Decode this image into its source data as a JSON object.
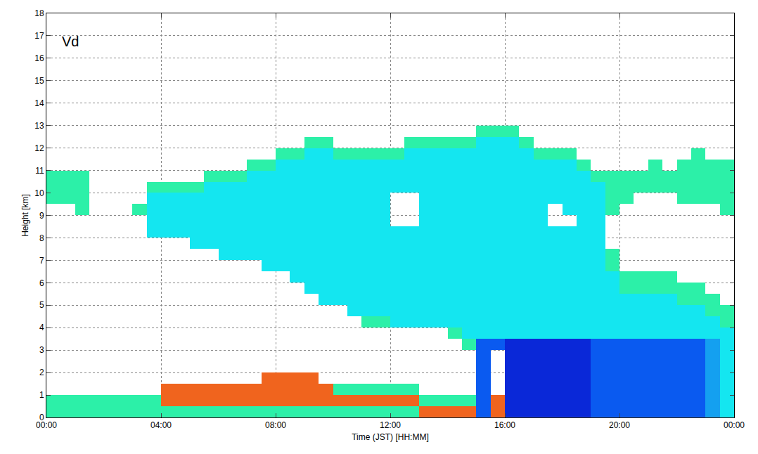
{
  "chart_data": {
    "type": "heatmap",
    "annotations": [
      "Vd"
    ],
    "x_label": "Time (JST) [HH:MM]",
    "y_label": "Height [km]",
    "xlim": [
      0,
      24
    ],
    "xticks": [
      {
        "value": 0,
        "label": "00:00"
      },
      {
        "value": 4,
        "label": "04:00"
      },
      {
        "value": 8,
        "label": "08:00"
      },
      {
        "value": 12,
        "label": "12:00"
      },
      {
        "value": 16,
        "label": "16:00"
      },
      {
        "value": 20,
        "label": "20:00"
      },
      {
        "value": 24,
        "label": "00:00"
      }
    ],
    "ylim": [
      0,
      18
    ],
    "yticks": [
      0,
      1,
      2,
      3,
      4,
      5,
      6,
      7,
      8,
      9,
      10,
      11,
      12,
      13,
      14,
      15,
      16,
      17,
      18
    ],
    "grid": true,
    "zlim": [
      -6,
      1
    ],
    "x": [
      0.25,
      0.75,
      1.25,
      1.75,
      2.25,
      2.75,
      3.25,
      3.75,
      4.25,
      4.75,
      5.25,
      5.75,
      6.25,
      6.75,
      7.25,
      7.75,
      8.25,
      8.75,
      9.25,
      9.75,
      10.25,
      10.75,
      11.25,
      11.75,
      12.25,
      12.75,
      13.25,
      13.75,
      14.25,
      14.75,
      15.25,
      15.75,
      16.25,
      16.75,
      17.25,
      17.75,
      18.25,
      18.75,
      19.25,
      19.75,
      20.25,
      20.75,
      21.25,
      21.75,
      22.25,
      22.75,
      23.25,
      23.75
    ],
    "y": [
      0.25,
      0.75,
      1.25,
      1.75,
      2.25,
      2.75,
      3.25,
      3.75,
      4.25,
      4.75,
      5.25,
      5.75,
      6.25,
      6.75,
      7.25,
      7.75,
      8.25,
      8.75,
      9.25,
      9.75,
      10.25,
      10.75,
      11.25,
      11.75,
      12.25,
      12.75
    ],
    "z": [
      [
        0,
        0,
        0,
        0,
        0,
        0,
        0,
        0,
        0,
        0,
        0,
        0,
        0,
        0,
        0,
        0,
        0,
        0,
        0,
        0,
        0,
        0,
        0,
        0,
        0,
        0,
        1,
        1,
        1,
        1,
        -4,
        1,
        -6,
        -6,
        -6,
        -6,
        -6,
        -6,
        -4,
        -4,
        -4,
        -4,
        -4,
        -4,
        -4,
        -4,
        -2,
        -1
      ],
      [
        0,
        0,
        0,
        0,
        0,
        0,
        0,
        0,
        1,
        1,
        1,
        1,
        1,
        1,
        1,
        1,
        1,
        1,
        1,
        1,
        1,
        1,
        1,
        1,
        1,
        1,
        0,
        0,
        0,
        0,
        -4,
        1,
        -6,
        -6,
        -6,
        -6,
        -6,
        -6,
        -4,
        -4,
        -4,
        -4,
        -4,
        -4,
        -4,
        -4,
        -2,
        -1
      ],
      [
        null,
        null,
        null,
        null,
        null,
        null,
        null,
        null,
        1,
        1,
        1,
        1,
        1,
        1,
        1,
        1,
        1,
        1,
        1,
        1,
        0,
        0,
        0,
        0,
        0,
        0,
        null,
        null,
        null,
        null,
        -4,
        null,
        -6,
        -6,
        -6,
        -6,
        -6,
        -6,
        -4,
        -4,
        -4,
        -4,
        -4,
        -4,
        -4,
        -4,
        -2,
        -1
      ],
      [
        null,
        null,
        null,
        null,
        null,
        null,
        null,
        null,
        null,
        null,
        null,
        null,
        null,
        null,
        null,
        1,
        1,
        1,
        1,
        null,
        null,
        null,
        null,
        null,
        null,
        null,
        null,
        null,
        null,
        null,
        -4,
        null,
        -6,
        -6,
        -6,
        -6,
        -6,
        -6,
        -4,
        -4,
        -4,
        -4,
        -4,
        -4,
        -4,
        -4,
        -2,
        -1
      ],
      [
        null,
        null,
        null,
        null,
        null,
        null,
        null,
        null,
        null,
        null,
        null,
        null,
        null,
        null,
        null,
        null,
        null,
        null,
        null,
        null,
        null,
        null,
        null,
        null,
        null,
        null,
        null,
        null,
        null,
        null,
        -4,
        null,
        -6,
        -6,
        -6,
        -6,
        -6,
        -6,
        -4,
        -4,
        -4,
        -4,
        -4,
        -4,
        -4,
        -4,
        -2,
        -1
      ],
      [
        null,
        null,
        null,
        null,
        null,
        null,
        null,
        null,
        null,
        null,
        null,
        null,
        null,
        null,
        null,
        null,
        null,
        null,
        null,
        null,
        null,
        null,
        null,
        null,
        null,
        null,
        null,
        null,
        null,
        null,
        -4,
        null,
        -6,
        -6,
        -6,
        -6,
        -6,
        -6,
        -4,
        -4,
        -4,
        -4,
        -4,
        -4,
        -4,
        -4,
        -2,
        -1
      ],
      [
        null,
        null,
        null,
        null,
        null,
        null,
        null,
        null,
        null,
        null,
        null,
        null,
        null,
        null,
        null,
        null,
        null,
        null,
        null,
        null,
        null,
        null,
        null,
        null,
        null,
        null,
        null,
        null,
        null,
        0,
        -4,
        -4,
        -6,
        -6,
        -6,
        -6,
        -6,
        -6,
        -4,
        -4,
        -4,
        -4,
        -4,
        -4,
        -4,
        -4,
        -2,
        -1
      ],
      [
        null,
        null,
        null,
        null,
        null,
        null,
        null,
        null,
        null,
        null,
        null,
        null,
        null,
        null,
        null,
        null,
        null,
        null,
        null,
        null,
        null,
        null,
        null,
        null,
        null,
        null,
        null,
        null,
        0,
        -1,
        -1,
        -1,
        -1,
        -1,
        -1,
        -1,
        -1,
        -1,
        -1,
        -1,
        -1,
        -1,
        -1,
        -1,
        -1,
        -1,
        -1,
        -1
      ],
      [
        null,
        null,
        null,
        null,
        null,
        null,
        null,
        null,
        null,
        null,
        null,
        null,
        null,
        null,
        null,
        null,
        null,
        null,
        null,
        null,
        null,
        null,
        0,
        0,
        -1,
        -1,
        -1,
        -1,
        -1,
        -1,
        -1,
        -1,
        -1,
        -1,
        -1,
        -1,
        -1,
        -1,
        -1,
        -1,
        -1,
        -1,
        -1,
        -1,
        -1,
        -1,
        -1,
        0
      ],
      [
        null,
        null,
        null,
        null,
        null,
        null,
        null,
        null,
        null,
        null,
        null,
        null,
        null,
        null,
        null,
        null,
        null,
        null,
        null,
        null,
        null,
        -1,
        -1,
        -1,
        -1,
        -1,
        -1,
        -1,
        -1,
        -1,
        -1,
        -1,
        -1,
        -1,
        -1,
        -1,
        -1,
        -1,
        -1,
        -1,
        -1,
        -1,
        -1,
        -1,
        -1,
        -1,
        0,
        0
      ],
      [
        null,
        null,
        null,
        null,
        null,
        null,
        null,
        null,
        null,
        null,
        null,
        null,
        null,
        null,
        null,
        null,
        null,
        null,
        null,
        -1,
        -1,
        -1,
        -1,
        -1,
        -1,
        -1,
        -1,
        -1,
        -1,
        -1,
        -1,
        -1,
        -1,
        -1,
        -1,
        -1,
        -1,
        -1,
        -1,
        -1,
        -1,
        -1,
        -1,
        -1,
        0,
        0,
        0,
        null
      ],
      [
        null,
        null,
        null,
        null,
        null,
        null,
        null,
        null,
        null,
        null,
        null,
        null,
        null,
        null,
        null,
        null,
        null,
        null,
        -1,
        -1,
        -1,
        -1,
        -1,
        -1,
        -1,
        -1,
        -1,
        -1,
        -1,
        -1,
        -1,
        -1,
        -1,
        -1,
        -1,
        -1,
        -1,
        -1,
        -1,
        -1,
        0,
        0,
        0,
        0,
        0,
        0,
        null,
        null
      ],
      [
        null,
        null,
        null,
        null,
        null,
        null,
        null,
        null,
        null,
        null,
        null,
        null,
        null,
        null,
        null,
        null,
        null,
        -1,
        -1,
        -1,
        -1,
        -1,
        -1,
        -1,
        -1,
        -1,
        -1,
        -1,
        -1,
        -1,
        -1,
        -1,
        -1,
        -1,
        -1,
        -1,
        -1,
        -1,
        -1,
        -1,
        0,
        0,
        0,
        0,
        null,
        null,
        null,
        null
      ],
      [
        null,
        null,
        null,
        null,
        null,
        null,
        null,
        null,
        null,
        null,
        null,
        null,
        null,
        null,
        null,
        -1,
        -1,
        -1,
        -1,
        -1,
        -1,
        -1,
        -1,
        -1,
        -1,
        -1,
        -1,
        -1,
        -1,
        -1,
        -1,
        -1,
        -1,
        -1,
        -1,
        -1,
        -1,
        -1,
        -1,
        0,
        null,
        null,
        null,
        null,
        null,
        null,
        null,
        null
      ],
      [
        null,
        null,
        null,
        null,
        null,
        null,
        null,
        null,
        null,
        null,
        null,
        null,
        -1,
        -1,
        -1,
        -1,
        -1,
        -1,
        -1,
        -1,
        -1,
        -1,
        -1,
        -1,
        -1,
        -1,
        -1,
        -1,
        -1,
        -1,
        -1,
        -1,
        -1,
        -1,
        -1,
        -1,
        -1,
        -1,
        -1,
        0,
        null,
        null,
        null,
        null,
        null,
        null,
        null,
        null
      ],
      [
        null,
        null,
        null,
        null,
        null,
        null,
        null,
        null,
        null,
        null,
        -1,
        -1,
        -1,
        -1,
        -1,
        -1,
        -1,
        -1,
        -1,
        -1,
        -1,
        -1,
        -1,
        -1,
        -1,
        -1,
        -1,
        -1,
        -1,
        -1,
        -1,
        -1,
        -1,
        -1,
        -1,
        -1,
        -1,
        -1,
        -1,
        null,
        null,
        null,
        null,
        null,
        null,
        null,
        null,
        null
      ],
      [
        null,
        null,
        null,
        null,
        null,
        null,
        null,
        -1,
        -1,
        -1,
        -1,
        -1,
        -1,
        -1,
        -1,
        -1,
        -1,
        -1,
        -1,
        -1,
        -1,
        -1,
        -1,
        -1,
        -1,
        -1,
        -1,
        -1,
        -1,
        -1,
        -1,
        -1,
        -1,
        -1,
        -1,
        -1,
        -1,
        -1,
        -1,
        null,
        null,
        null,
        null,
        null,
        null,
        null,
        null,
        null
      ],
      [
        null,
        null,
        null,
        null,
        null,
        null,
        null,
        -1,
        -1,
        -1,
        -1,
        -1,
        -1,
        -1,
        -1,
        -1,
        -1,
        -1,
        -1,
        -1,
        -1,
        -1,
        -1,
        -1,
        null,
        null,
        -1,
        -1,
        -1,
        -1,
        -1,
        -1,
        -1,
        -1,
        -1,
        null,
        null,
        -1,
        -1,
        null,
        null,
        null,
        null,
        null,
        null,
        null,
        null,
        null
      ],
      [
        null,
        null,
        0,
        null,
        null,
        null,
        0,
        -1,
        -1,
        -1,
        -1,
        -1,
        -1,
        -1,
        -1,
        -1,
        -1,
        -1,
        -1,
        -1,
        -1,
        -1,
        -1,
        -1,
        null,
        null,
        -1,
        -1,
        -1,
        -1,
        -1,
        -1,
        -1,
        -1,
        -1,
        null,
        -1,
        -1,
        -1,
        0,
        null,
        null,
        null,
        null,
        null,
        null,
        null,
        0
      ],
      [
        0,
        0,
        0,
        null,
        null,
        null,
        null,
        -1,
        -1,
        -1,
        -1,
        -1,
        -1,
        -1,
        -1,
        -1,
        -1,
        -1,
        -1,
        -1,
        -1,
        -1,
        -1,
        -1,
        null,
        null,
        -1,
        -1,
        -1,
        -1,
        -1,
        -1,
        -1,
        -1,
        -1,
        -1,
        -1,
        -1,
        -1,
        0,
        0,
        null,
        null,
        null,
        0,
        0,
        0,
        0
      ],
      [
        0,
        0,
        0,
        null,
        null,
        null,
        null,
        0,
        0,
        0,
        0,
        -1,
        -1,
        -1,
        -1,
        -1,
        -1,
        -1,
        -1,
        -1,
        -1,
        -1,
        -1,
        -1,
        -1,
        -1,
        -1,
        -1,
        -1,
        -1,
        -1,
        -1,
        -1,
        -1,
        -1,
        -1,
        -1,
        -1,
        -1,
        0,
        0,
        0,
        0,
        0,
        0,
        0,
        0,
        0
      ],
      [
        0,
        0,
        0,
        null,
        null,
        null,
        null,
        null,
        null,
        null,
        null,
        0,
        0,
        0,
        -1,
        -1,
        -1,
        -1,
        -1,
        -1,
        -1,
        -1,
        -1,
        -1,
        -1,
        -1,
        -1,
        -1,
        -1,
        -1,
        -1,
        -1,
        -1,
        -1,
        -1,
        -1,
        -1,
        -1,
        0,
        0,
        0,
        0,
        0,
        0,
        0,
        0,
        0,
        0
      ],
      [
        null,
        null,
        null,
        null,
        null,
        null,
        null,
        null,
        null,
        null,
        null,
        null,
        null,
        null,
        0,
        0,
        -1,
        -1,
        -1,
        -1,
        -1,
        -1,
        -1,
        -1,
        -1,
        -1,
        -1,
        -1,
        -1,
        -1,
        -1,
        -1,
        -1,
        -1,
        -1,
        -1,
        -1,
        0,
        null,
        null,
        null,
        null,
        0,
        null,
        0,
        0,
        0,
        0
      ],
      [
        null,
        null,
        null,
        null,
        null,
        null,
        null,
        null,
        null,
        null,
        null,
        null,
        null,
        null,
        null,
        null,
        0,
        0,
        -1,
        -1,
        0,
        0,
        0,
        0,
        0,
        -1,
        -1,
        -1,
        -1,
        -1,
        -1,
        -1,
        -1,
        -1,
        0,
        0,
        0,
        null,
        null,
        null,
        null,
        null,
        null,
        null,
        null,
        0,
        null,
        null
      ],
      [
        null,
        null,
        null,
        null,
        null,
        null,
        null,
        null,
        null,
        null,
        null,
        null,
        null,
        null,
        null,
        null,
        null,
        null,
        0,
        0,
        null,
        null,
        null,
        null,
        null,
        0,
        0,
        0,
        0,
        0,
        -1,
        -1,
        -1,
        0,
        null,
        null,
        null,
        null,
        null,
        null,
        null,
        null,
        null,
        null,
        null,
        null,
        null,
        null
      ],
      [
        null,
        null,
        null,
        null,
        null,
        null,
        null,
        null,
        null,
        null,
        null,
        null,
        null,
        null,
        null,
        null,
        null,
        null,
        null,
        null,
        null,
        null,
        null,
        null,
        null,
        null,
        null,
        null,
        null,
        null,
        0,
        0,
        0,
        null,
        null,
        null,
        null,
        null,
        null,
        null,
        null,
        null,
        null,
        null,
        null,
        null,
        null,
        null
      ]
    ]
  }
}
